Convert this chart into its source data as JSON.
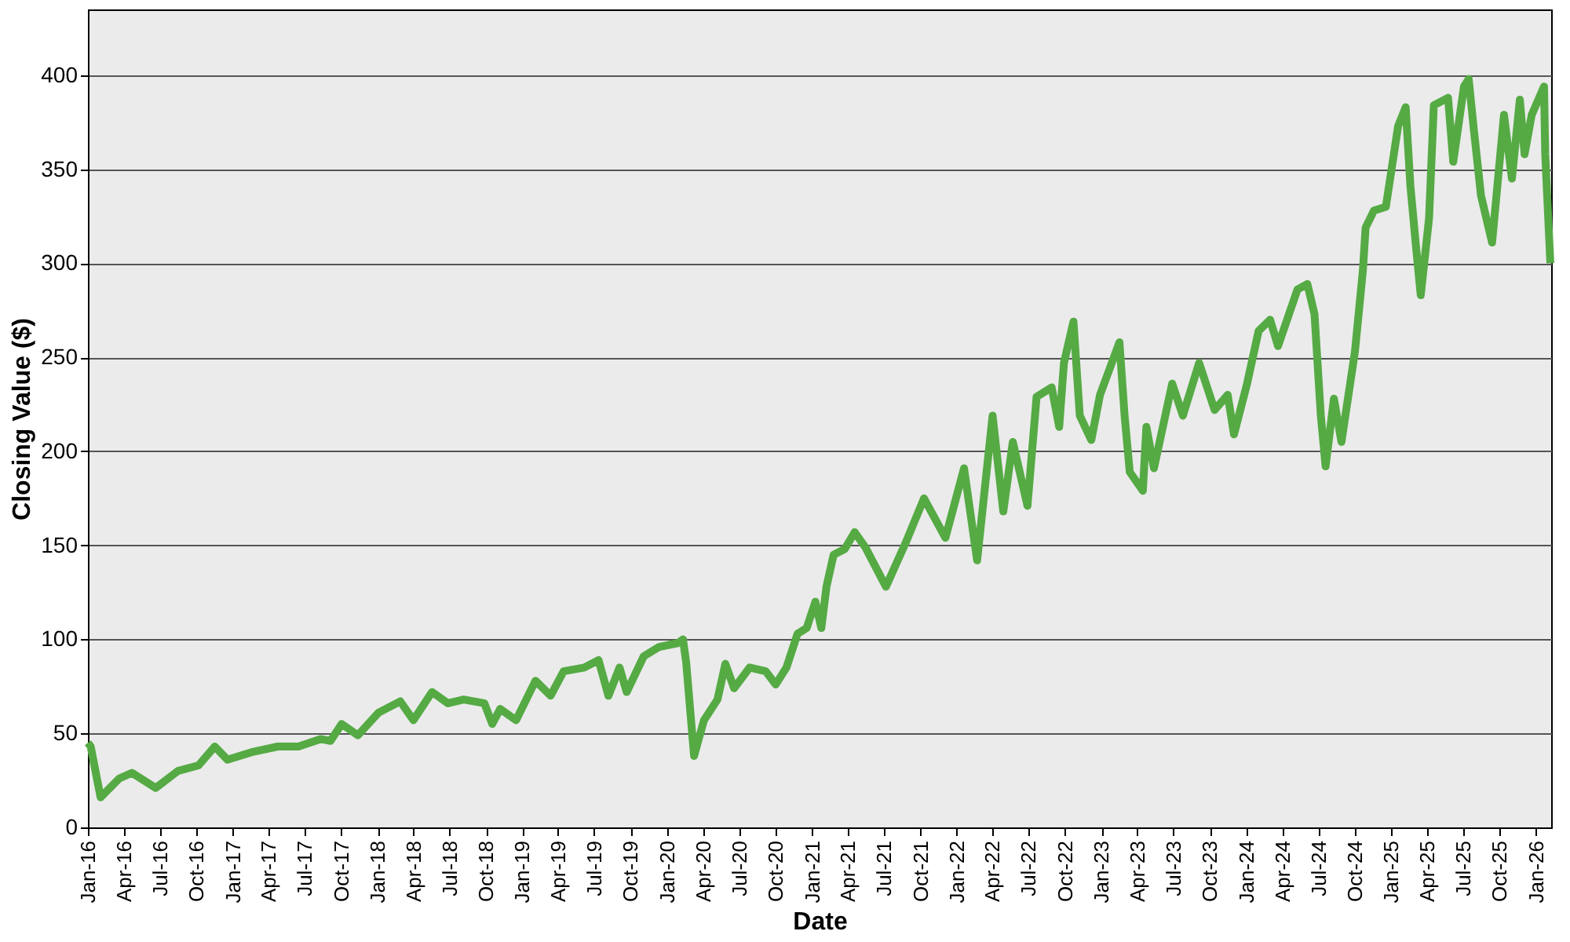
{
  "chart_data": {
    "type": "line",
    "xlabel": "Date",
    "ylabel": "Closing Value ($)",
    "x": [
      "2016-01-01",
      "2016-01-08",
      "2016-02-02",
      "2016-03-20",
      "2016-04-21",
      "2016-06-20",
      "2016-08-15",
      "2016-10-06",
      "2016-11-16",
      "2016-12-18",
      "2017-02-17",
      "2017-04-24",
      "2017-06-15",
      "2017-08-10",
      "2017-09-04",
      "2017-10-02",
      "2017-11-12",
      "2018-01-03",
      "2018-02-27",
      "2018-04-01",
      "2018-05-18",
      "2018-06-27",
      "2018-08-06",
      "2018-09-27",
      "2018-10-17",
      "2018-11-06",
      "2018-12-16",
      "2019-02-03",
      "2019-03-13",
      "2019-04-15",
      "2019-06-06",
      "2019-07-12",
      "2019-08-06",
      "2019-09-03",
      "2019-09-21",
      "2019-11-03",
      "2019-12-12",
      "2020-01-28",
      "2020-02-10",
      "2020-02-18",
      "2020-03-09",
      "2020-04-03",
      "2020-05-07",
      "2020-05-27",
      "2020-06-18",
      "2020-07-27",
      "2020-09-06",
      "2020-10-01",
      "2020-10-28",
      "2020-11-25",
      "2020-12-18",
      "2021-01-09",
      "2021-01-24",
      "2021-02-06",
      "2021-02-24",
      "2021-03-24",
      "2021-04-18",
      "2021-05-15",
      "2021-07-06",
      "2021-08-24",
      "2021-10-10",
      "2021-12-03",
      "2022-01-19",
      "2022-02-21",
      "2022-04-01",
      "2022-04-28",
      "2022-05-22",
      "2022-06-28",
      "2022-07-21",
      "2022-08-28",
      "2022-09-16",
      "2022-09-28",
      "2022-10-22",
      "2022-11-07",
      "2022-12-06",
      "2022-12-28",
      "2023-02-15",
      "2023-02-28",
      "2023-03-13",
      "2023-04-15",
      "2023-04-24",
      "2023-05-13",
      "2023-06-28",
      "2023-07-25",
      "2023-09-04",
      "2023-10-13",
      "2023-11-15",
      "2023-12-01",
      "2024-01-03",
      "2024-02-01",
      "2024-03-01",
      "2024-03-21",
      "2024-05-09",
      "2024-06-03",
      "2024-06-21",
      "2024-07-07",
      "2024-07-19",
      "2024-08-09",
      "2024-08-28",
      "2024-10-01",
      "2024-10-21",
      "2024-10-28",
      "2024-11-18",
      "2024-12-18",
      "2025-01-18",
      "2025-02-06",
      "2025-02-18",
      "2025-03-04",
      "2025-03-16",
      "2025-04-06",
      "2025-04-18",
      "2025-05-24",
      "2025-06-06",
      "2025-07-03",
      "2025-07-15",
      "2025-07-27",
      "2025-08-15",
      "2025-09-12",
      "2025-10-12",
      "2025-11-01",
      "2025-11-21",
      "2025-12-03",
      "2025-12-21",
      "2026-01-21",
      "2026-01-24",
      "2026-02-06"
    ],
    "series": [
      {
        "color": "#55aa44",
        "values": [
          45,
          43,
          16,
          26,
          29,
          21,
          30,
          33,
          43,
          36,
          40,
          43,
          43,
          47,
          46,
          55,
          49,
          61,
          67,
          57,
          72,
          66,
          68,
          66,
          55,
          63,
          57,
          78,
          70,
          83,
          85,
          89,
          70,
          85,
          72,
          91,
          96,
          98,
          100,
          88,
          38,
          57,
          68,
          87,
          74,
          85,
          83,
          76,
          85,
          103,
          106,
          120,
          106,
          128,
          145,
          148,
          157,
          149,
          128,
          151,
          175,
          154,
          191,
          142,
          219,
          168,
          205,
          171,
          229,
          234,
          213,
          247,
          269,
          219,
          206,
          230,
          258,
          219,
          189,
          179,
          213,
          191,
          236,
          219,
          247,
          222,
          230,
          209,
          236,
          264,
          270,
          256,
          286,
          289,
          273,
          219,
          192,
          228,
          205,
          253,
          296,
          319,
          328,
          330,
          373,
          383,
          341,
          309,
          283,
          324,
          384,
          388,
          354,
          394,
          398,
          373,
          336,
          311,
          379,
          345,
          387,
          358,
          379,
          394,
          358,
          300
        ]
      }
    ],
    "xlim": [
      "2016-01-01",
      "2026-02-08"
    ],
    "ylim": [
      0,
      435
    ],
    "yticks": [
      0,
      50,
      100,
      150,
      200,
      250,
      300,
      350,
      400
    ],
    "xticks": [
      {
        "value": "2016-01-01",
        "label": "Jan-16"
      },
      {
        "value": "2016-04-01",
        "label": "Apr-16"
      },
      {
        "value": "2016-07-01",
        "label": "Jul-16"
      },
      {
        "value": "2016-10-01",
        "label": "Oct-16"
      },
      {
        "value": "2017-01-01",
        "label": "Jan-17"
      },
      {
        "value": "2017-04-01",
        "label": "Apr-17"
      },
      {
        "value": "2017-07-01",
        "label": "Jul-17"
      },
      {
        "value": "2017-10-01",
        "label": "Oct-17"
      },
      {
        "value": "2018-01-01",
        "label": "Jan-18"
      },
      {
        "value": "2018-04-01",
        "label": "Apr-18"
      },
      {
        "value": "2018-07-01",
        "label": "Jul-18"
      },
      {
        "value": "2018-10-01",
        "label": "Oct-18"
      },
      {
        "value": "2019-01-01",
        "label": "Jan-19"
      },
      {
        "value": "2019-04-01",
        "label": "Apr-19"
      },
      {
        "value": "2019-07-01",
        "label": "Jul-19"
      },
      {
        "value": "2019-10-01",
        "label": "Oct-19"
      },
      {
        "value": "2020-01-01",
        "label": "Jan-20"
      },
      {
        "value": "2020-04-01",
        "label": "Apr-20"
      },
      {
        "value": "2020-07-01",
        "label": "Jul-20"
      },
      {
        "value": "2020-10-01",
        "label": "Oct-20"
      },
      {
        "value": "2021-01-01",
        "label": "Jan-21"
      },
      {
        "value": "2021-04-01",
        "label": "Apr-21"
      },
      {
        "value": "2021-07-01",
        "label": "Jul-21"
      },
      {
        "value": "2021-10-01",
        "label": "Oct-21"
      },
      {
        "value": "2022-01-01",
        "label": "Jan-22"
      },
      {
        "value": "2022-04-01",
        "label": "Apr-22"
      },
      {
        "value": "2022-07-01",
        "label": "Jul-22"
      },
      {
        "value": "2022-10-01",
        "label": "Oct-22"
      },
      {
        "value": "2023-01-01",
        "label": "Jan-23"
      },
      {
        "value": "2023-04-01",
        "label": "Apr-23"
      },
      {
        "value": "2023-07-01",
        "label": "Jul-23"
      },
      {
        "value": "2023-10-01",
        "label": "Oct-23"
      },
      {
        "value": "2024-01-01",
        "label": "Jan-24"
      },
      {
        "value": "2024-04-01",
        "label": "Apr-24"
      },
      {
        "value": "2024-07-01",
        "label": "Jul-24"
      },
      {
        "value": "2024-10-01",
        "label": "Oct-24"
      },
      {
        "value": "2025-01-01",
        "label": "Jan-25"
      },
      {
        "value": "2025-04-01",
        "label": "Apr-25"
      },
      {
        "value": "2025-07-01",
        "label": "Jul-25"
      },
      {
        "value": "2025-10-01",
        "label": "Oct-25"
      },
      {
        "value": "2026-01-01",
        "label": "Jan-26"
      }
    ],
    "grid": "y",
    "legend": false,
    "marker": "none",
    "line_style": "solid"
  }
}
